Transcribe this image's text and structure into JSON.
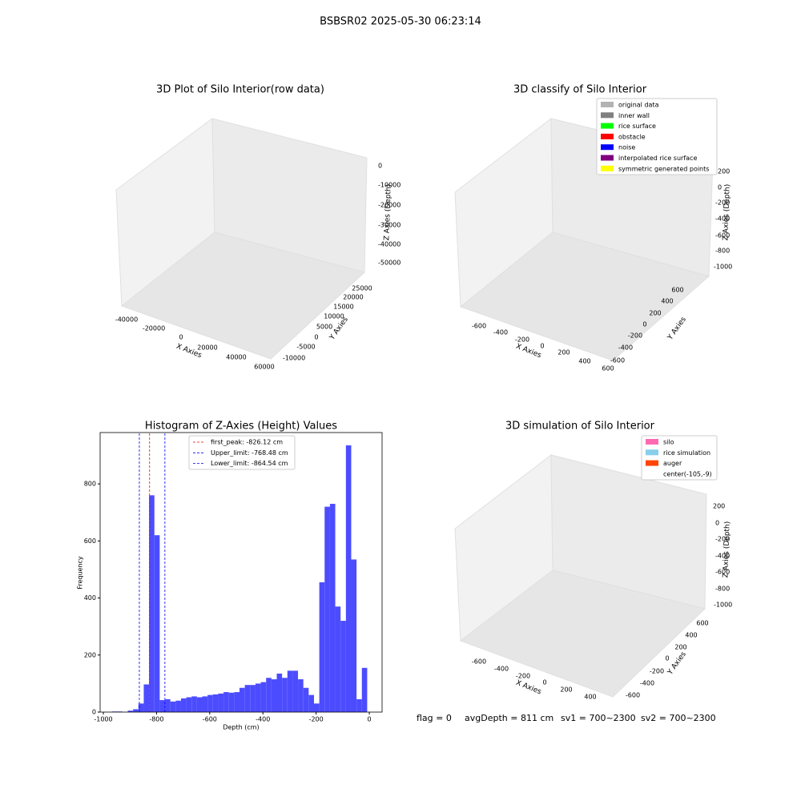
{
  "title": "BSBSR02 2025-05-30 06:23:14",
  "chart_data": [
    {
      "type": "scatter3d",
      "title": "3D Plot of Silo Interior(row data)",
      "xlabel": "X Axies",
      "ylabel": "Y Axies",
      "zlabel": "Z Axies (Depth)",
      "xticks": [
        -40000,
        -20000,
        0,
        20000,
        40000,
        60000
      ],
      "yticks": [
        -10000,
        -5000,
        0,
        5000,
        10000,
        15000,
        20000,
        25000
      ],
      "zticks": [
        0,
        -10000,
        -20000,
        -30000,
        -40000,
        -50000
      ]
    },
    {
      "type": "scatter3d",
      "title": "3D classify of Silo Interior",
      "xlabel": "X Axies",
      "ylabel": "Y Axies",
      "zlabel": "Z Axies (Depth)",
      "xticks": [
        -600,
        -400,
        -200,
        0,
        200,
        400,
        600
      ],
      "yticks": [
        -600,
        -400,
        -200,
        0,
        200,
        400,
        600
      ],
      "zticks": [
        200,
        0,
        -200,
        -400,
        -600,
        -800,
        -1000
      ],
      "legend": [
        {
          "name": "original data",
          "color": "#b3b3b3"
        },
        {
          "name": "inner wall",
          "color": "#808080"
        },
        {
          "name": "rice surface",
          "color": "#00ff00"
        },
        {
          "name": "obstacle",
          "color": "#ff0000"
        },
        {
          "name": "noise",
          "color": "#0000ff"
        },
        {
          "name": "interpolated rice surface",
          "color": "#800080"
        },
        {
          "name": "symmetric generated points",
          "color": "#ffff00"
        }
      ]
    },
    {
      "type": "histogram",
      "title": "Histogram of Z-Axies (Height) Values",
      "xlabel": "Depth (cm)",
      "ylabel": "Frequency",
      "color": "#4c4cff",
      "bins": [
        -968,
        -948,
        -928,
        -908,
        -888,
        -868,
        -848,
        -828,
        -808,
        -788,
        -768,
        -748,
        -728,
        -708,
        -688,
        -668,
        -648,
        -628,
        -608,
        -588,
        -568,
        -548,
        -528,
        -508,
        -488,
        -468,
        -448,
        -428,
        -408,
        -388,
        -368,
        -348,
        -328,
        -308,
        -288,
        -268,
        -248,
        -228,
        -208,
        -188,
        -168,
        -148,
        -128,
        -108,
        -88,
        -68,
        -48,
        -28,
        -8
      ],
      "values": [
        2,
        2,
        0,
        5,
        10,
        30,
        97,
        760,
        620,
        42,
        45,
        37,
        40,
        48,
        52,
        55,
        52,
        55,
        60,
        62,
        65,
        70,
        68,
        70,
        85,
        95,
        95,
        100,
        105,
        120,
        115,
        135,
        120,
        145,
        145,
        115,
        85,
        60,
        30,
        455,
        720,
        730,
        370,
        320,
        935,
        535,
        45,
        155
      ],
      "xlim": [
        -1012,
        48
      ],
      "ylim": [
        0,
        980
      ],
      "xticks": [
        -1000,
        -800,
        -600,
        -400,
        -200,
        0
      ],
      "yticks": [
        0,
        200,
        400,
        600,
        800
      ],
      "legend_loc": "upper center",
      "lines": [
        {
          "name": "first_peak: -826.12 cm",
          "value": -826.12,
          "color": "#ff0000"
        },
        {
          "name": "Upper_limit: -768.48 cm",
          "value": -768.48,
          "color": "#0000ff"
        },
        {
          "name": "Lower_limit: -864.54 cm",
          "value": -864.54,
          "color": "#0000ff"
        }
      ]
    },
    {
      "type": "scatter3d",
      "title": "3D simulation of Silo Interior",
      "xlabel": "X Axies",
      "ylabel": "Y Axies",
      "zlabel": "Z Axies (Depth)",
      "xticks": [
        -600,
        -400,
        -200,
        0,
        200,
        400
      ],
      "yticks": [
        -600,
        -400,
        -200,
        0,
        200,
        400,
        600
      ],
      "zticks": [
        200,
        0,
        -200,
        -400,
        -600,
        -800,
        -1000
      ],
      "legend": [
        {
          "name": "silo",
          "color": "#ff69b4"
        },
        {
          "name": "rice simulation",
          "color": "#87ceeb"
        },
        {
          "name": "auger",
          "color": "#ff4500"
        },
        {
          "name": "center(-105,-9)"
        }
      ]
    }
  ],
  "footer": [
    "flag = 0",
    "avgDepth = 811 cm",
    "sv1 = 700~2300",
    "sv2 = 700~2300"
  ]
}
